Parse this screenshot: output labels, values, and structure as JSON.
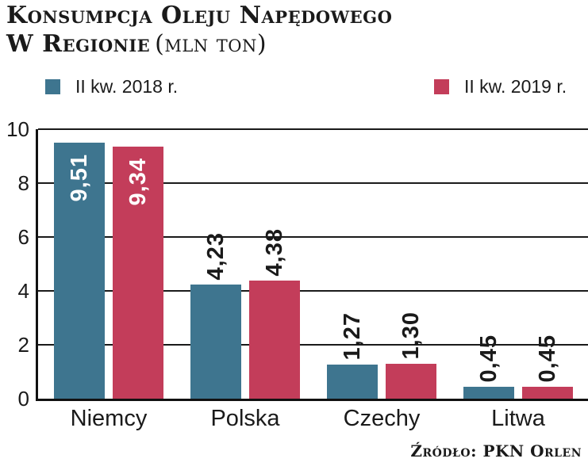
{
  "title": {
    "line1": "Konsumpcja Oleju Napędowego",
    "line2_bold": "W Regionie",
    "line2_units": "(mln ton)"
  },
  "source": "Źródło: PKN Orlen",
  "colors": {
    "series_2018": "#3E758F",
    "series_2019": "#C33D5A",
    "grid": "#1a1a1a",
    "text": "#1a1a1a",
    "label_on_bar": "#ffffff"
  },
  "chart_data": {
    "type": "bar",
    "title": "Konsumpcja oleju napędowego w regionie (mln ton)",
    "categories": [
      "Niemcy",
      "Polska",
      "Czechy",
      "Litwa"
    ],
    "series": [
      {
        "key": "2018",
        "name": "II kw. 2018 r.",
        "color": "#3E758F",
        "values": [
          9.51,
          4.23,
          1.27,
          0.45
        ],
        "labels": [
          "9,51",
          "4,23",
          "1,27",
          "0,45"
        ]
      },
      {
        "key": "2019",
        "name": "II kw. 2019 r.",
        "color": "#C33D5A",
        "values": [
          9.34,
          4.38,
          1.3,
          0.45
        ],
        "labels": [
          "9,34",
          "4,38",
          "1,30",
          "0,45"
        ]
      }
    ],
    "xlabel": "",
    "ylabel": "mln ton",
    "ylim": [
      0,
      10
    ],
    "yticks": [
      0,
      2,
      4,
      6,
      8,
      10
    ],
    "grid": true,
    "legend_position": "top",
    "label_inside_threshold": 8
  }
}
